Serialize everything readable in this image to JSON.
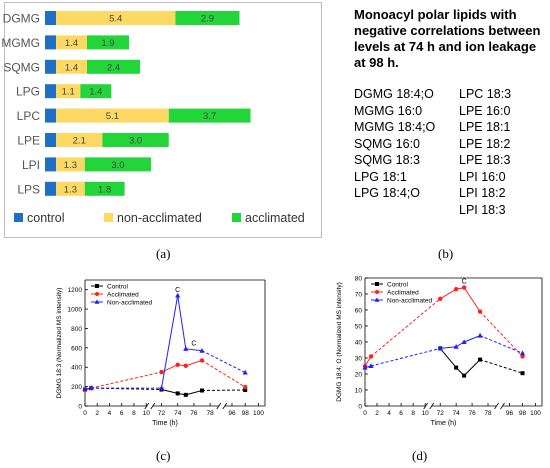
{
  "chart_data": [
    {
      "type": "bar",
      "stacked": true,
      "orientation": "horizontal",
      "categories": [
        "DGMG",
        "MGMG",
        "SQMG",
        "LPG",
        "LPC",
        "LPE",
        "LPI",
        "LPS"
      ],
      "series": [
        {
          "name": "control",
          "color": "#1f6fc5",
          "values": [
            0.5,
            0.5,
            0.5,
            0.5,
            0.5,
            0.5,
            0.5,
            0.5
          ]
        },
        {
          "name": "non-acclimated",
          "color": "#fdd964",
          "values": [
            5.4,
            1.4,
            1.4,
            1.1,
            5.1,
            2.1,
            1.3,
            1.3
          ],
          "labels": [
            "5.4",
            "1.4",
            "1.4",
            "1.1",
            "5.1",
            "2.1",
            "1.3",
            "1.3"
          ]
        },
        {
          "name": "acclimated",
          "color": "#22d63a",
          "values": [
            2.9,
            1.9,
            2.4,
            1.4,
            3.7,
            3.0,
            3.0,
            1.8
          ],
          "labels": [
            "2.9",
            "1.9",
            "2.4",
            "1.4",
            "3.7",
            "3.0",
            "3.0",
            "1.8"
          ]
        }
      ],
      "legend": "bottom",
      "xlim": [
        0,
        10
      ]
    },
    {
      "type": "line",
      "ylabel": "DGMG 18:3 (Normalized MS intensity)",
      "xlabel": "Time (h)",
      "xticks": [
        "0",
        "2",
        "4",
        "6",
        "8",
        "10",
        "72",
        "74",
        "76",
        "78",
        "96",
        "98",
        "100"
      ],
      "yticks": [
        "0",
        "200",
        "400",
        "600",
        "800",
        "1000",
        "1200"
      ],
      "ylim": [
        0,
        1300
      ],
      "legend": "top-left",
      "annotations": [
        "C",
        "C"
      ],
      "series": [
        {
          "name": "Control",
          "color": "#000000",
          "marker": "square",
          "x": [
            0,
            1,
            72,
            74,
            75,
            77,
            98
          ],
          "y": [
            170,
            185,
            170,
            130,
            115,
            160,
            165
          ]
        },
        {
          "name": "Acclimated",
          "color": "#ff2020",
          "marker": "circle",
          "x": [
            0,
            1,
            72,
            74,
            75,
            77,
            98
          ],
          "y": [
            165,
            185,
            350,
            425,
            415,
            470,
            195
          ]
        },
        {
          "name": "Non-acclimated",
          "color": "#2020ff",
          "marker": "triangle",
          "x": [
            0,
            1,
            72,
            74,
            75,
            77,
            98
          ],
          "y": [
            175,
            185,
            185,
            1140,
            590,
            570,
            345
          ]
        }
      ]
    },
    {
      "type": "line",
      "ylabel": "DGMG 18:4; O (Normalized MS intensity)",
      "xlabel": "Time (h)",
      "xticks": [
        "0",
        "2",
        "4",
        "6",
        "8",
        "10",
        "72",
        "74",
        "76",
        "78",
        "96",
        "98",
        "100"
      ],
      "yticks": [
        "0",
        "10",
        "20",
        "30",
        "40",
        "50",
        "60",
        "70",
        "80"
      ],
      "ylim": [
        0,
        80
      ],
      "legend": "top-left",
      "annotations": [
        "C"
      ],
      "series": [
        {
          "name": "Control",
          "color": "#000000",
          "marker": "square",
          "x": [
            72,
            74,
            75,
            77,
            98
          ],
          "y": [
            36,
            24,
            19,
            29,
            20.5
          ]
        },
        {
          "name": "Acclimated",
          "color": "#ff2020",
          "marker": "circle",
          "x": [
            0,
            1,
            72,
            74,
            75,
            77,
            98
          ],
          "y": [
            25,
            31,
            67,
            73,
            74,
            59,
            31
          ]
        },
        {
          "name": "Non-acclimated",
          "color": "#2020ff",
          "marker": "triangle",
          "x": [
            0,
            1,
            72,
            74,
            75,
            77,
            98
          ],
          "y": [
            24,
            25,
            36,
            37,
            40,
            44,
            33
          ]
        }
      ]
    }
  ],
  "panel_b": {
    "title": "Monoacyl polar lipids with negative correlations between levels at 74 h and ion leakage at 98 h.",
    "left": [
      "DGMG 18:4;O",
      "MGMG 16:0",
      "MGMG 18:4;O",
      "SQMG 16:0",
      "SQMG 18:3",
      "LPG 18:1",
      "LPG 18:4;O"
    ],
    "right": [
      "LPC 18:3",
      "LPE 16:0",
      "LPE 18:1",
      "LPE 18:2",
      "LPE 18:3",
      "LPI 16:0",
      "LPI 18:2",
      "LPI 18:3"
    ]
  },
  "captions": {
    "a": "(a)",
    "b": "(b)",
    "c": "(c)",
    "d": "(d)"
  }
}
